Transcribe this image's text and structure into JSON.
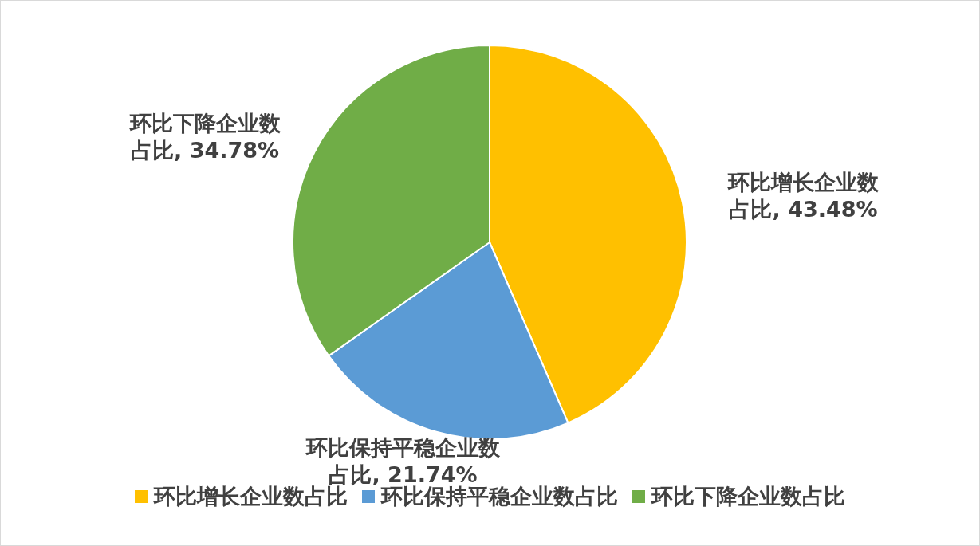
{
  "chart_data": {
    "type": "pie",
    "categories": [
      "环比增长企业数占比",
      "环比保持平稳企业数占比",
      "环比下降企业数占比"
    ],
    "values": [
      43.48,
      21.74,
      34.78
    ],
    "colors": [
      "#ffc000",
      "#5b9bd5",
      "#70ad47"
    ],
    "value_labels": [
      "环比增长企业数占比, 43.48%",
      "环比保持平稳企业数占比, 21.74%",
      "环比下降企业数占比, 34.78%"
    ],
    "legend": "bottom"
  }
}
